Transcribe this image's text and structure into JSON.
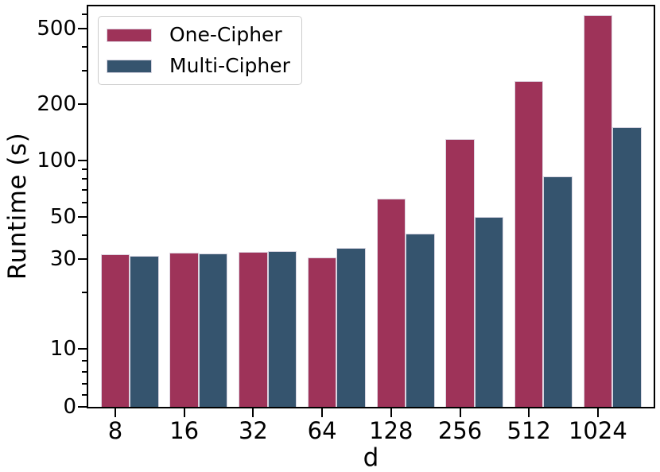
{
  "chart_data": {
    "type": "bar",
    "title": "",
    "xlabel": "d",
    "ylabel": "Runtime (s)",
    "yscale": "symlog",
    "ylim": [
      0,
      680
    ],
    "grid": false,
    "legend_position": "upper left",
    "categories": [
      "8",
      "16",
      "32",
      "64",
      "128",
      "256",
      "512",
      "1024"
    ],
    "series": [
      {
        "name": "One-Cipher",
        "color": "#9E3359",
        "values": [
          31.8,
          32.4,
          32.6,
          30.7,
          63,
          130,
          265,
          590
        ]
      },
      {
        "name": "Multi-Cipher",
        "color": "#35546E",
        "values": [
          31.2,
          32.1,
          33.2,
          34.3,
          41,
          50,
          82,
          150
        ]
      }
    ],
    "y_major_ticks": [
      0,
      10,
      30,
      50,
      100,
      200,
      500
    ],
    "y_minor_ticks": [
      2,
      4,
      6,
      8,
      20,
      40,
      60,
      70,
      80,
      90,
      300,
      400,
      600
    ]
  },
  "colors": {
    "one_cipher": "#9E3359",
    "multi_cipher": "#35546E",
    "axis": "#000000",
    "legend_border": "#cccccc",
    "background": "#ffffff"
  }
}
